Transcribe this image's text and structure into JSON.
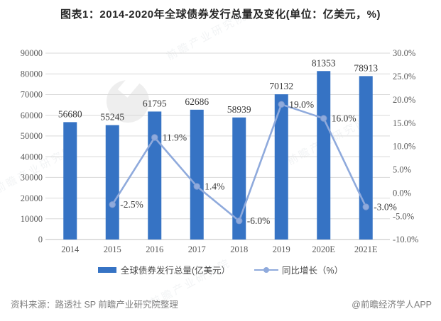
{
  "title": "图表1：2014-2020年全球债券发行总量及变化(单位：亿美元，%)",
  "watermark": {
    "text": "前瞻产业研究院",
    "logo": "qianzhan-logo"
  },
  "legend": [
    {
      "label": "全球债券发行总量(亿美元）"
    },
    {
      "label": "同比增长（%）"
    }
  ],
  "footer": {
    "source": "资料来源：路透社 SP 前瞻产业研究院整理",
    "credit": "@前瞻经济学人APP"
  },
  "colors": {
    "bar": "#3673C4",
    "line": "#8FAADC",
    "marker_stroke": "#7F9BD0",
    "grid": "#D9D9D9",
    "zero_line": "#BFBFBF",
    "axis_text": "#595959",
    "label_text": "#3A3A3A",
    "title_text": "#262626",
    "footer_text": "#7F7F7F"
  },
  "chart_data": {
    "type": "bar",
    "title": "图表1：2014-2020年全球债券发行总量及变化(单位：亿美元，%)",
    "categories": [
      "2014",
      "2015",
      "2016",
      "2017",
      "2018",
      "2019",
      "2020E",
      "2021E"
    ],
    "series": [
      {
        "name": "全球债券发行总量(亿美元）",
        "type": "bar",
        "values": [
          56680,
          55245,
          61795,
          62686,
          58939,
          70132,
          81353,
          78913
        ],
        "labels": [
          "56680",
          "55245",
          "61795",
          "62686",
          "58939",
          "70132",
          "81353",
          "78913"
        ]
      },
      {
        "name": "同比增长（%）",
        "type": "line",
        "values": [
          null,
          -2.5,
          11.9,
          1.4,
          -6.0,
          19.0,
          16.0,
          -3.0
        ],
        "labels": [
          null,
          "-2.5%",
          "11.9%",
          "1.4%",
          "-6.0%",
          "19.0%",
          "16.0%",
          "-3.0%"
        ]
      }
    ],
    "left_axis": {
      "min": 0,
      "max": 90000,
      "step": 10000,
      "ticks": [
        "0",
        "10000",
        "20000",
        "30000",
        "40000",
        "50000",
        "60000",
        "70000",
        "80000",
        "90000"
      ]
    },
    "right_axis": {
      "min": -10,
      "max": 30,
      "step": 5,
      "format": "percent",
      "ticks": [
        "-10.0%",
        "-5.0%",
        "0.0%",
        "5.0%",
        "10.0%",
        "15.0%",
        "20.0%",
        "25.0%",
        "30.0%"
      ]
    },
    "grid": true,
    "legend_position": "bottom"
  }
}
